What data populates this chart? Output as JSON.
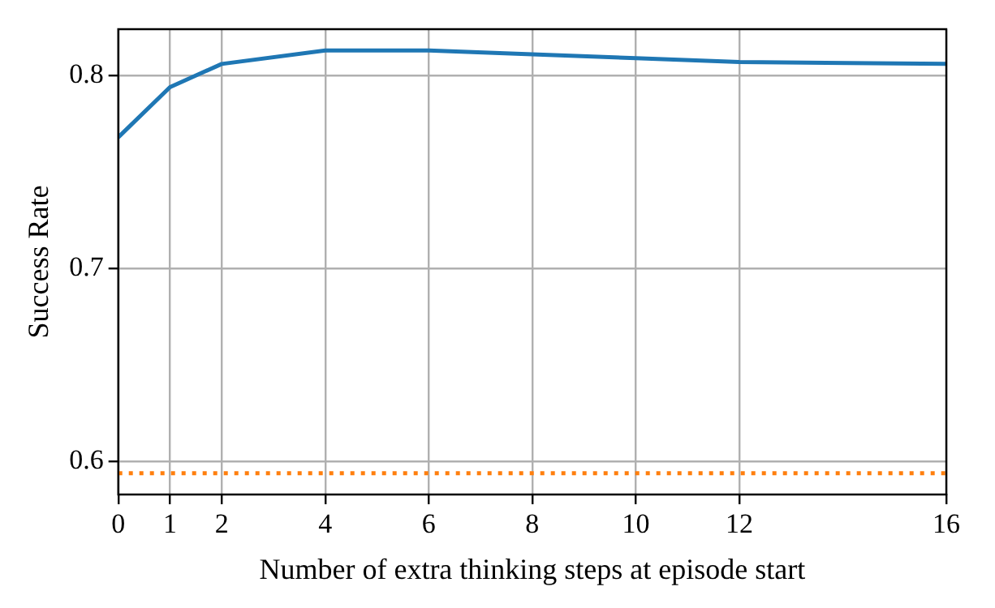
{
  "chart_data": {
    "type": "line",
    "xlabel": "Number of extra thinking steps at episode start",
    "ylabel": "Success Rate",
    "x": [
      0,
      1,
      2,
      4,
      6,
      8,
      10,
      12,
      16
    ],
    "series": [
      {
        "color": "#1f77b4",
        "values": [
          0.768,
          0.794,
          0.806,
          0.813,
          0.813,
          0.811,
          0.809,
          0.807,
          0.806
        ]
      }
    ],
    "xlim": [
      0,
      16
    ],
    "xticks": [
      0,
      1,
      2,
      4,
      6,
      8,
      10,
      12,
      16
    ],
    "ylim": [
      0.583,
      0.824
    ],
    "yticks": [
      {
        "value": 0.6,
        "label": "0.6"
      },
      {
        "value": 0.7,
        "label": "0.7"
      },
      {
        "value": 0.8,
        "label": "0.8"
      }
    ],
    "ref_lines": [
      {
        "axis": "y",
        "value": 0.594,
        "color": "#ff7f0e",
        "line_style": "dotted"
      }
    ],
    "grid": true,
    "legend": false,
    "marker": "none",
    "line_style": "solid"
  }
}
